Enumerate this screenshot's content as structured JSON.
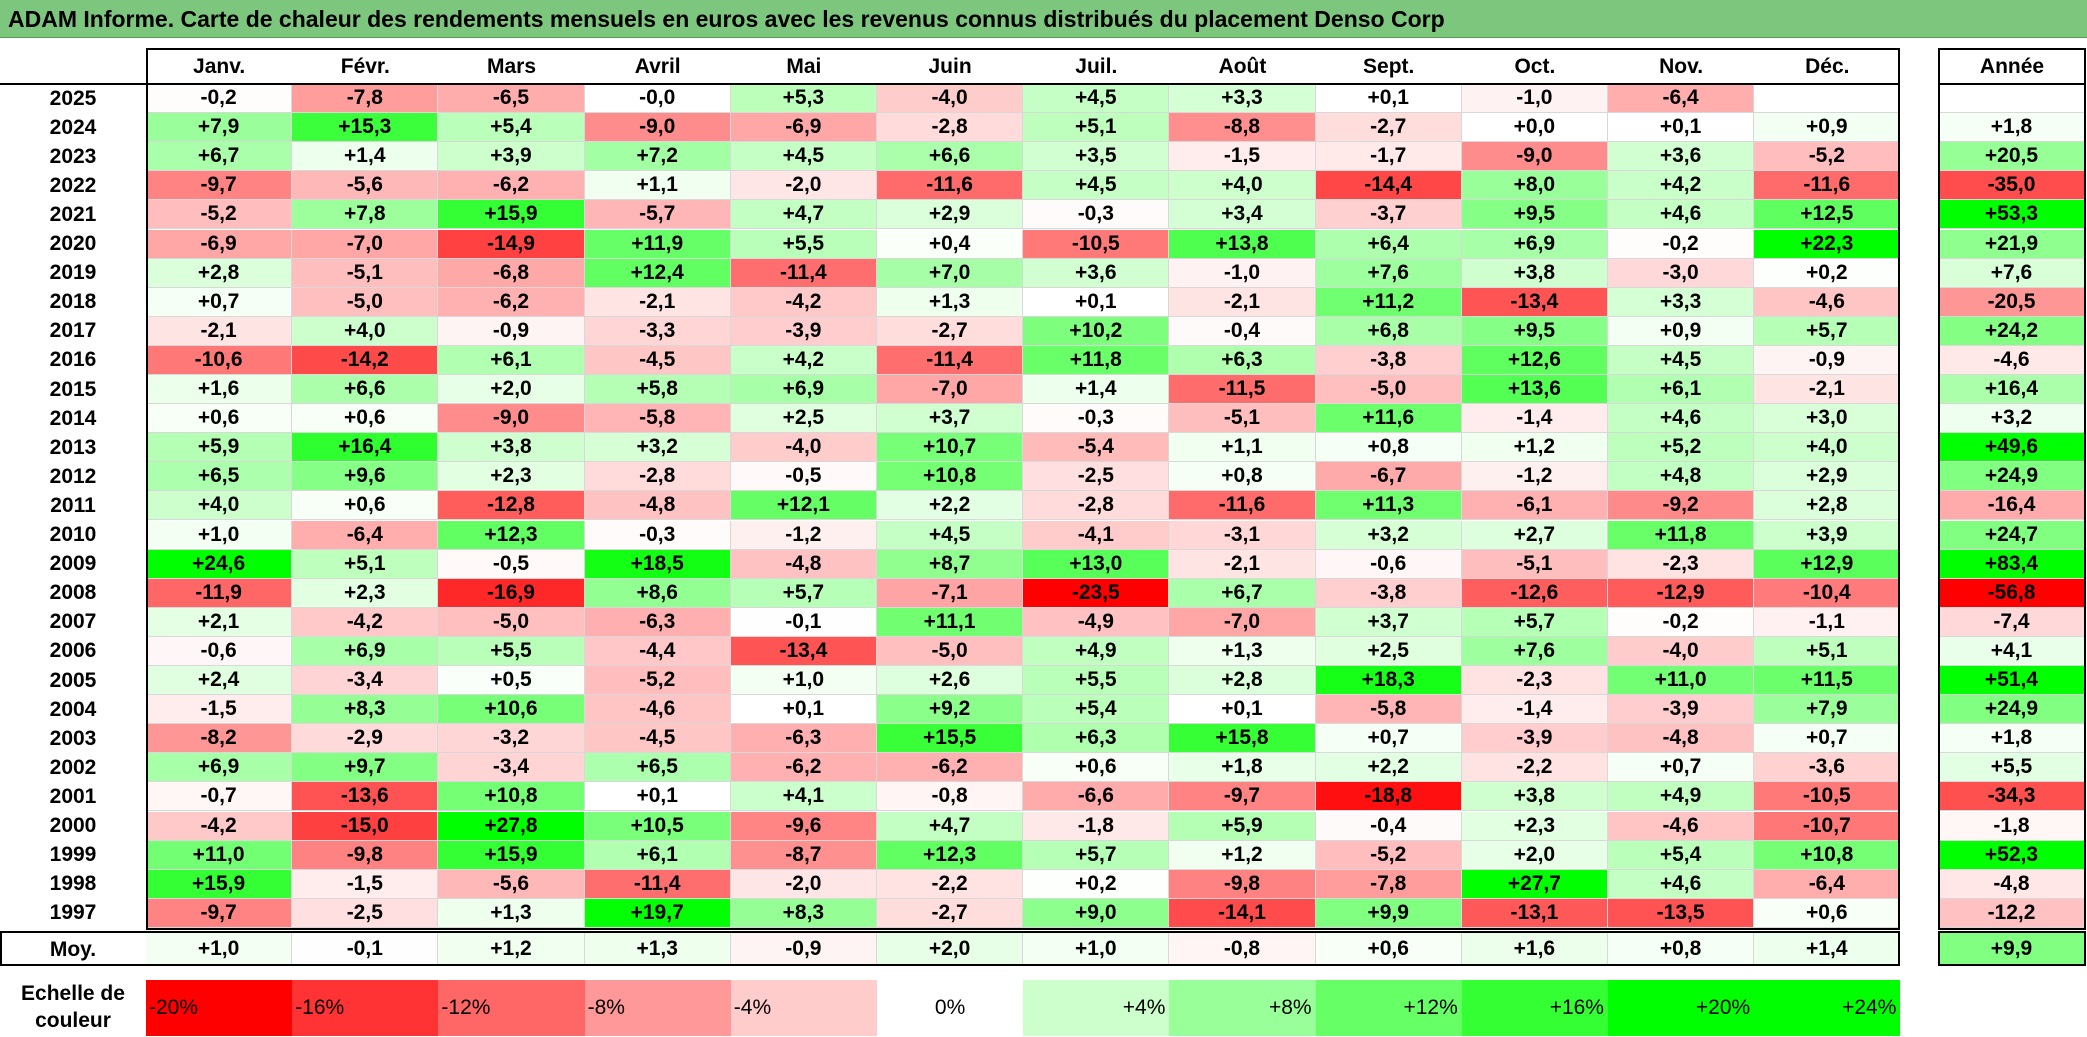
{
  "title": "ADAM Informe. Carte de chaleur des rendements mensuels en euros avec les revenus connus distribués du placement Denso Corp",
  "chart_data": {
    "type": "heatmap",
    "columns": [
      "Janv.",
      "Févr.",
      "Mars",
      "Avril",
      "Mai",
      "Juin",
      "Juil.",
      "Août",
      "Sept.",
      "Oct.",
      "Nov.",
      "Déc."
    ],
    "annual_header": "Année",
    "rows": [
      {
        "year": "2025",
        "values": [
          "-0,2",
          "-7,8",
          "-6,5",
          "-0,0",
          "+5,3",
          "-4,0",
          "+4,5",
          "+3,3",
          "+0,1",
          "-1,0",
          "-6,4",
          ""
        ],
        "annual": ""
      },
      {
        "year": "2024",
        "values": [
          "+7,9",
          "+15,3",
          "+5,4",
          "-9,0",
          "-6,9",
          "-2,8",
          "+5,1",
          "-8,8",
          "-2,7",
          "+0,0",
          "+0,1",
          "+0,9"
        ],
        "annual": "+1,8"
      },
      {
        "year": "2023",
        "values": [
          "+6,7",
          "+1,4",
          "+3,9",
          "+7,2",
          "+4,5",
          "+6,6",
          "+3,5",
          "-1,5",
          "-1,7",
          "-9,0",
          "+3,6",
          "-5,2"
        ],
        "annual": "+20,5"
      },
      {
        "year": "2022",
        "values": [
          "-9,7",
          "-5,6",
          "-6,2",
          "+1,1",
          "-2,0",
          "-11,6",
          "+4,5",
          "+4,0",
          "-14,4",
          "+8,0",
          "+4,2",
          "-11,6"
        ],
        "annual": "-35,0"
      },
      {
        "year": "2021",
        "values": [
          "-5,2",
          "+7,8",
          "+15,9",
          "-5,7",
          "+4,7",
          "+2,9",
          "-0,3",
          "+3,4",
          "-3,7",
          "+9,5",
          "+4,6",
          "+12,5"
        ],
        "annual": "+53,3"
      },
      {
        "year": "2020",
        "values": [
          "-6,9",
          "-7,0",
          "-14,9",
          "+11,9",
          "+5,5",
          "+0,4",
          "-10,5",
          "+13,8",
          "+6,4",
          "+6,9",
          "-0,2",
          "+22,3"
        ],
        "annual": "+21,9"
      },
      {
        "year": "2019",
        "values": [
          "+2,8",
          "-5,1",
          "-6,8",
          "+12,4",
          "-11,4",
          "+7,0",
          "+3,6",
          "-1,0",
          "+7,6",
          "+3,8",
          "-3,0",
          "+0,2"
        ],
        "annual": "+7,6"
      },
      {
        "year": "2018",
        "values": [
          "+0,7",
          "-5,0",
          "-6,2",
          "-2,1",
          "-4,2",
          "+1,3",
          "+0,1",
          "-2,1",
          "+11,2",
          "-13,4",
          "+3,3",
          "-4,6"
        ],
        "annual": "-20,5"
      },
      {
        "year": "2017",
        "values": [
          "-2,1",
          "+4,0",
          "-0,9",
          "-3,3",
          "-3,9",
          "-2,7",
          "+10,2",
          "-0,4",
          "+6,8",
          "+9,5",
          "+0,9",
          "+5,7"
        ],
        "annual": "+24,2"
      },
      {
        "year": "2016",
        "values": [
          "-10,6",
          "-14,2",
          "+6,1",
          "-4,5",
          "+4,2",
          "-11,4",
          "+11,8",
          "+6,3",
          "-3,8",
          "+12,6",
          "+4,5",
          "-0,9"
        ],
        "annual": "-4,6"
      },
      {
        "year": "2015",
        "values": [
          "+1,6",
          "+6,6",
          "+2,0",
          "+5,8",
          "+6,9",
          "-7,0",
          "+1,4",
          "-11,5",
          "-5,0",
          "+13,6",
          "+6,1",
          "-2,1"
        ],
        "annual": "+16,4"
      },
      {
        "year": "2014",
        "values": [
          "+0,6",
          "+0,6",
          "-9,0",
          "-5,8",
          "+2,5",
          "+3,7",
          "-0,3",
          "-5,1",
          "+11,6",
          "-1,4",
          "+4,6",
          "+3,0"
        ],
        "annual": "+3,2"
      },
      {
        "year": "2013",
        "values": [
          "+5,9",
          "+16,4",
          "+3,8",
          "+3,2",
          "-4,0",
          "+10,7",
          "-5,4",
          "+1,1",
          "+0,8",
          "+1,2",
          "+5,2",
          "+4,0"
        ],
        "annual": "+49,6"
      },
      {
        "year": "2012",
        "values": [
          "+6,5",
          "+9,6",
          "+2,3",
          "-2,8",
          "-0,5",
          "+10,8",
          "-2,5",
          "+0,8",
          "-6,7",
          "-1,2",
          "+4,8",
          "+2,9"
        ],
        "annual": "+24,9"
      },
      {
        "year": "2011",
        "values": [
          "+4,0",
          "+0,6",
          "-12,8",
          "-4,8",
          "+12,1",
          "+2,2",
          "-2,8",
          "-11,6",
          "+11,3",
          "-6,1",
          "-9,2",
          "+2,8"
        ],
        "annual": "-16,4"
      },
      {
        "year": "2010",
        "values": [
          "+1,0",
          "-6,4",
          "+12,3",
          "-0,3",
          "-1,2",
          "+4,5",
          "-4,1",
          "-3,1",
          "+3,2",
          "+2,7",
          "+11,8",
          "+3,9"
        ],
        "annual": "+24,7"
      },
      {
        "year": "2009",
        "values": [
          "+24,6",
          "+5,1",
          "-0,5",
          "+18,5",
          "-4,8",
          "+8,7",
          "+13,0",
          "-2,1",
          "-0,6",
          "-5,1",
          "-2,3",
          "+12,9"
        ],
        "annual": "+83,4"
      },
      {
        "year": "2008",
        "values": [
          "-11,9",
          "+2,3",
          "-16,9",
          "+8,6",
          "+5,7",
          "-7,1",
          "-23,5",
          "+6,7",
          "-3,8",
          "-12,6",
          "-12,9",
          "-10,4"
        ],
        "annual": "-56,8"
      },
      {
        "year": "2007",
        "values": [
          "+2,1",
          "-4,2",
          "-5,0",
          "-6,3",
          "-0,1",
          "+11,1",
          "-4,9",
          "-7,0",
          "+3,7",
          "+5,7",
          "-0,2",
          "-1,1"
        ],
        "annual": "-7,4"
      },
      {
        "year": "2006",
        "values": [
          "-0,6",
          "+6,9",
          "+5,5",
          "-4,4",
          "-13,4",
          "-5,0",
          "+4,9",
          "+1,3",
          "+2,5",
          "+7,6",
          "-4,0",
          "+5,1"
        ],
        "annual": "+4,1"
      },
      {
        "year": "2005",
        "values": [
          "+2,4",
          "-3,4",
          "+0,5",
          "-5,2",
          "+1,0",
          "+2,6",
          "+5,5",
          "+2,8",
          "+18,3",
          "-2,3",
          "+11,0",
          "+11,5"
        ],
        "annual": "+51,4"
      },
      {
        "year": "2004",
        "values": [
          "-1,5",
          "+8,3",
          "+10,6",
          "-4,6",
          "+0,1",
          "+9,2",
          "+5,4",
          "+0,1",
          "-5,8",
          "-1,4",
          "-3,9",
          "+7,9"
        ],
        "annual": "+24,9"
      },
      {
        "year": "2003",
        "values": [
          "-8,2",
          "-2,9",
          "-3,2",
          "-4,5",
          "-6,3",
          "+15,5",
          "+6,3",
          "+15,8",
          "+0,7",
          "-3,9",
          "-4,8",
          "+0,7"
        ],
        "annual": "+1,8"
      },
      {
        "year": "2002",
        "values": [
          "+6,9",
          "+9,7",
          "-3,4",
          "+6,5",
          "-6,2",
          "-6,2",
          "+0,6",
          "+1,8",
          "+2,2",
          "-2,2",
          "+0,7",
          "-3,6"
        ],
        "annual": "+5,5"
      },
      {
        "year": "2001",
        "values": [
          "-0,7",
          "-13,6",
          "+10,8",
          "+0,1",
          "+4,1",
          "-0,8",
          "-6,6",
          "-9,7",
          "-18,8",
          "+3,8",
          "+4,9",
          "-10,5"
        ],
        "annual": "-34,3"
      },
      {
        "year": "2000",
        "values": [
          "-4,2",
          "-15,0",
          "+27,8",
          "+10,5",
          "-9,6",
          "+4,7",
          "-1,8",
          "+5,9",
          "-0,4",
          "+2,3",
          "-4,6",
          "-10,7"
        ],
        "annual": "-1,8"
      },
      {
        "year": "1999",
        "values": [
          "+11,0",
          "-9,8",
          "+15,9",
          "+6,1",
          "-8,7",
          "+12,3",
          "+5,7",
          "+1,2",
          "-5,2",
          "+2,0",
          "+5,4",
          "+10,8"
        ],
        "annual": "+52,3"
      },
      {
        "year": "1998",
        "values": [
          "+15,9",
          "-1,5",
          "-5,6",
          "-11,4",
          "-2,0",
          "-2,2",
          "+0,2",
          "-9,8",
          "-7,8",
          "+27,7",
          "+4,6",
          "-6,4"
        ],
        "annual": "-4,8"
      },
      {
        "year": "1997",
        "values": [
          "-9,7",
          "-2,5",
          "+1,3",
          "+19,7",
          "+8,3",
          "-2,7",
          "+9,0",
          "-14,1",
          "+9,9",
          "-13,1",
          "-13,5",
          "+0,6"
        ],
        "annual": "-12,2"
      }
    ],
    "average": {
      "label": "Moy.",
      "values": [
        "+1,0",
        "-0,1",
        "+1,2",
        "+1,3",
        "-0,9",
        "+2,0",
        "+1,0",
        "-0,8",
        "+0,6",
        "+1,6",
        "+0,8",
        "+1,4"
      ],
      "annual": "+9,9"
    },
    "scale": {
      "title": "Echelle de couleur",
      "labels": [
        "-20%",
        "-16%",
        "-12%",
        "-8%",
        "-4%",
        "0%",
        "+4%",
        "+8%",
        "+12%",
        "+16%",
        "+20%",
        "+24%"
      ],
      "values": [
        -20,
        -16,
        -12,
        -8,
        -4,
        0,
        4,
        8,
        12,
        16,
        20,
        24
      ]
    },
    "colors": {
      "negative_max": "#ff0000",
      "neutral": "#ffffff",
      "positive_max": "#00ff00",
      "title_bar": "#7dc67d"
    }
  }
}
